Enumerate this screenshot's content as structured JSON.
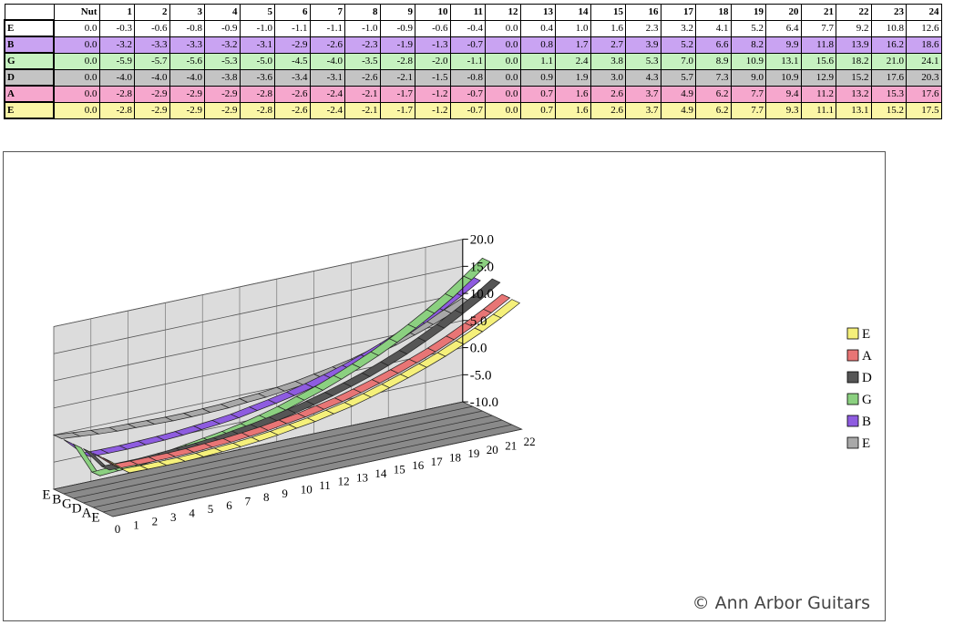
{
  "table": {
    "columns": [
      "Nut",
      "1",
      "2",
      "3",
      "4",
      "5",
      "6",
      "7",
      "8",
      "9",
      "10",
      "11",
      "12",
      "13",
      "14",
      "15",
      "16",
      "17",
      "18",
      "19",
      "20",
      "21",
      "22",
      "23",
      "24"
    ],
    "rows": [
      {
        "label": "E",
        "color": "#ffffff",
        "values": [
          "0.0",
          "-0.3",
          "-0.6",
          "-0.8",
          "-0.9",
          "-1.0",
          "-1.1",
          "-1.1",
          "-1.0",
          "-0.9",
          "-0.6",
          "-0.4",
          "0.0",
          "0.4",
          "1.0",
          "1.6",
          "2.3",
          "3.2",
          "4.1",
          "5.2",
          "6.4",
          "7.7",
          "9.2",
          "10.8",
          "12.6"
        ]
      },
      {
        "label": "B",
        "color": "#c9a3f2",
        "values": [
          "0.0",
          "-3.2",
          "-3.3",
          "-3.3",
          "-3.2",
          "-3.1",
          "-2.9",
          "-2.6",
          "-2.3",
          "-1.9",
          "-1.3",
          "-0.7",
          "0.0",
          "0.8",
          "1.7",
          "2.7",
          "3.9",
          "5.2",
          "6.6",
          "8.2",
          "9.9",
          "11.8",
          "13.9",
          "16.2",
          "18.6"
        ]
      },
      {
        "label": "G",
        "color": "#c6f2c0",
        "values": [
          "0.0",
          "-5.9",
          "-5.7",
          "-5.6",
          "-5.3",
          "-5.0",
          "-4.5",
          "-4.0",
          "-3.5",
          "-2.8",
          "-2.0",
          "-1.1",
          "0.0",
          "1.1",
          "2.4",
          "3.8",
          "5.3",
          "7.0",
          "8.9",
          "10.9",
          "13.1",
          "15.6",
          "18.2",
          "21.0",
          "24.1"
        ]
      },
      {
        "label": "D",
        "color": "#c4c4c4",
        "values": [
          "0.0",
          "-4.0",
          "-4.0",
          "-4.0",
          "-3.8",
          "-3.6",
          "-3.4",
          "-3.1",
          "-2.6",
          "-2.1",
          "-1.5",
          "-0.8",
          "0.0",
          "0.9",
          "1.9",
          "3.0",
          "4.3",
          "5.7",
          "7.3",
          "9.0",
          "10.9",
          "12.9",
          "15.2",
          "17.6",
          "20.3"
        ]
      },
      {
        "label": "A",
        "color": "#f6a7cd",
        "values": [
          "0.0",
          "-2.8",
          "-2.9",
          "-2.9",
          "-2.9",
          "-2.8",
          "-2.6",
          "-2.4",
          "-2.1",
          "-1.7",
          "-1.2",
          "-0.7",
          "0.0",
          "0.7",
          "1.6",
          "2.6",
          "3.7",
          "4.9",
          "6.2",
          "7.7",
          "9.4",
          "11.2",
          "13.2",
          "15.3",
          "17.6"
        ]
      },
      {
        "label": "E",
        "color": "#fbf6a6",
        "values": [
          "0.0",
          "-2.8",
          "-2.9",
          "-2.9",
          "-2.9",
          "-2.8",
          "-2.6",
          "-2.4",
          "-2.1",
          "-1.7",
          "-1.2",
          "-0.7",
          "0.0",
          "0.7",
          "1.6",
          "2.6",
          "3.7",
          "4.9",
          "6.2",
          "7.7",
          "9.3",
          "11.1",
          "13.1",
          "15.2",
          "17.5"
        ]
      }
    ]
  },
  "chart_data": {
    "type": "line",
    "subtype": "3d-ribbon",
    "x": [
      0,
      1,
      2,
      3,
      4,
      5,
      6,
      7,
      8,
      9,
      10,
      11,
      12,
      13,
      14,
      15,
      16,
      17,
      18,
      19,
      20,
      21,
      22
    ],
    "z_categories": [
      "E",
      "B",
      "G",
      "D",
      "A",
      "E"
    ],
    "zlim": [
      -10,
      20
    ],
    "z_ticks": [
      "20.0",
      "15.0",
      "10.0",
      "5.0",
      "0.0",
      "-5.0",
      "-10.0"
    ],
    "grid": true,
    "legend_position": "right",
    "legend": [
      {
        "name": "E",
        "color": "#f5f07a"
      },
      {
        "name": "A",
        "color": "#e87575"
      },
      {
        "name": "D",
        "color": "#555555"
      },
      {
        "name": "G",
        "color": "#8bd080"
      },
      {
        "name": "B",
        "color": "#8e5ce0"
      },
      {
        "name": "E",
        "color": "#a8a8a8"
      }
    ],
    "series": [
      {
        "name": "E",
        "color": "#a8a8a8",
        "values": [
          0.0,
          -0.3,
          -0.6,
          -0.8,
          -0.9,
          -1.0,
          -1.1,
          -1.1,
          -1.0,
          -0.9,
          -0.6,
          -0.4,
          0.0,
          0.4,
          1.0,
          1.6,
          2.3,
          3.2,
          4.1,
          5.2,
          6.4,
          7.7,
          9.2
        ]
      },
      {
        "name": "B",
        "color": "#8e5ce0",
        "values": [
          0.0,
          -3.2,
          -3.3,
          -3.3,
          -3.2,
          -3.1,
          -2.9,
          -2.6,
          -2.3,
          -1.9,
          -1.3,
          -0.7,
          0.0,
          0.8,
          1.7,
          2.7,
          3.9,
          5.2,
          6.6,
          8.2,
          9.9,
          11.8,
          13.9
        ]
      },
      {
        "name": "G",
        "color": "#8bd080",
        "values": [
          0.0,
          -5.9,
          -5.7,
          -5.6,
          -5.3,
          -5.0,
          -4.5,
          -4.0,
          -3.5,
          -2.8,
          -2.0,
          -1.1,
          0.0,
          1.1,
          2.4,
          3.8,
          5.3,
          7.0,
          8.9,
          10.9,
          13.1,
          15.6,
          18.2
        ]
      },
      {
        "name": "D",
        "color": "#555555",
        "values": [
          0.0,
          -4.0,
          -4.0,
          -4.0,
          -3.8,
          -3.6,
          -3.4,
          -3.1,
          -2.6,
          -2.1,
          -1.5,
          -0.8,
          0.0,
          0.9,
          1.9,
          3.0,
          4.3,
          5.7,
          7.3,
          9.0,
          10.9,
          12.9,
          15.2
        ]
      },
      {
        "name": "A",
        "color": "#e87575",
        "values": [
          0.0,
          -2.8,
          -2.9,
          -2.9,
          -2.9,
          -2.8,
          -2.6,
          -2.4,
          -2.1,
          -1.7,
          -1.2,
          -0.7,
          0.0,
          0.7,
          1.6,
          2.6,
          3.7,
          4.9,
          6.2,
          7.7,
          9.4,
          11.2,
          13.2
        ]
      },
      {
        "name": "E",
        "color": "#f5f07a",
        "values": [
          0.0,
          -2.8,
          -2.9,
          -2.9,
          -2.9,
          -2.8,
          -2.6,
          -2.4,
          -2.1,
          -1.7,
          -1.2,
          -0.7,
          0.0,
          0.7,
          1.6,
          2.6,
          3.7,
          4.9,
          6.2,
          7.7,
          9.3,
          11.1,
          13.1
        ]
      }
    ]
  },
  "copyright": "© Ann Arbor Guitars"
}
